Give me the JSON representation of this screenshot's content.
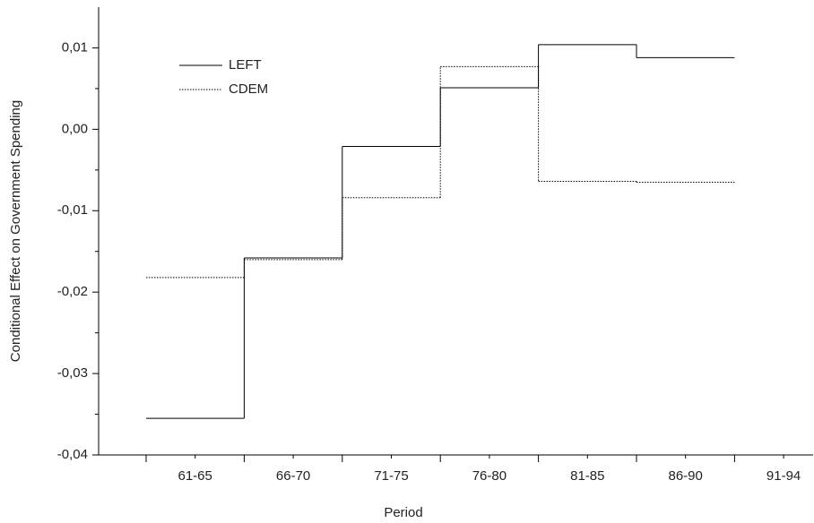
{
  "chart_data": {
    "type": "step",
    "x_label": "Period",
    "y_label": "Conditional Effect on Government Spending",
    "categories": [
      "61-65",
      "66-70",
      "71-75",
      "76-80",
      "81-85",
      "86-90",
      "91-94"
    ],
    "series": [
      {
        "name": "LEFT",
        "color": "#000000",
        "dash": "solid",
        "values": [
          -0.0355,
          -0.0158,
          -0.0021,
          0.0051,
          0.0104,
          0.0088,
          null
        ]
      },
      {
        "name": "CDEM",
        "color": "#000000",
        "dash": "dotted",
        "values": [
          -0.0182,
          -0.016,
          -0.0084,
          0.0077,
          -0.0064,
          -0.0065,
          null
        ]
      }
    ],
    "ylim": [
      -0.04,
      0.015
    ],
    "yticks": [
      {
        "value": -0.04,
        "label": "-0,04"
      },
      {
        "value": -0.03,
        "label": "-0,03"
      },
      {
        "value": -0.02,
        "label": "-0,02"
      },
      {
        "value": -0.01,
        "label": "-0,01"
      },
      {
        "value": 0,
        "label": "0,00"
      },
      {
        "value": 0.01,
        "label": "0,01"
      }
    ],
    "legend": "upper left",
    "grid": false
  }
}
